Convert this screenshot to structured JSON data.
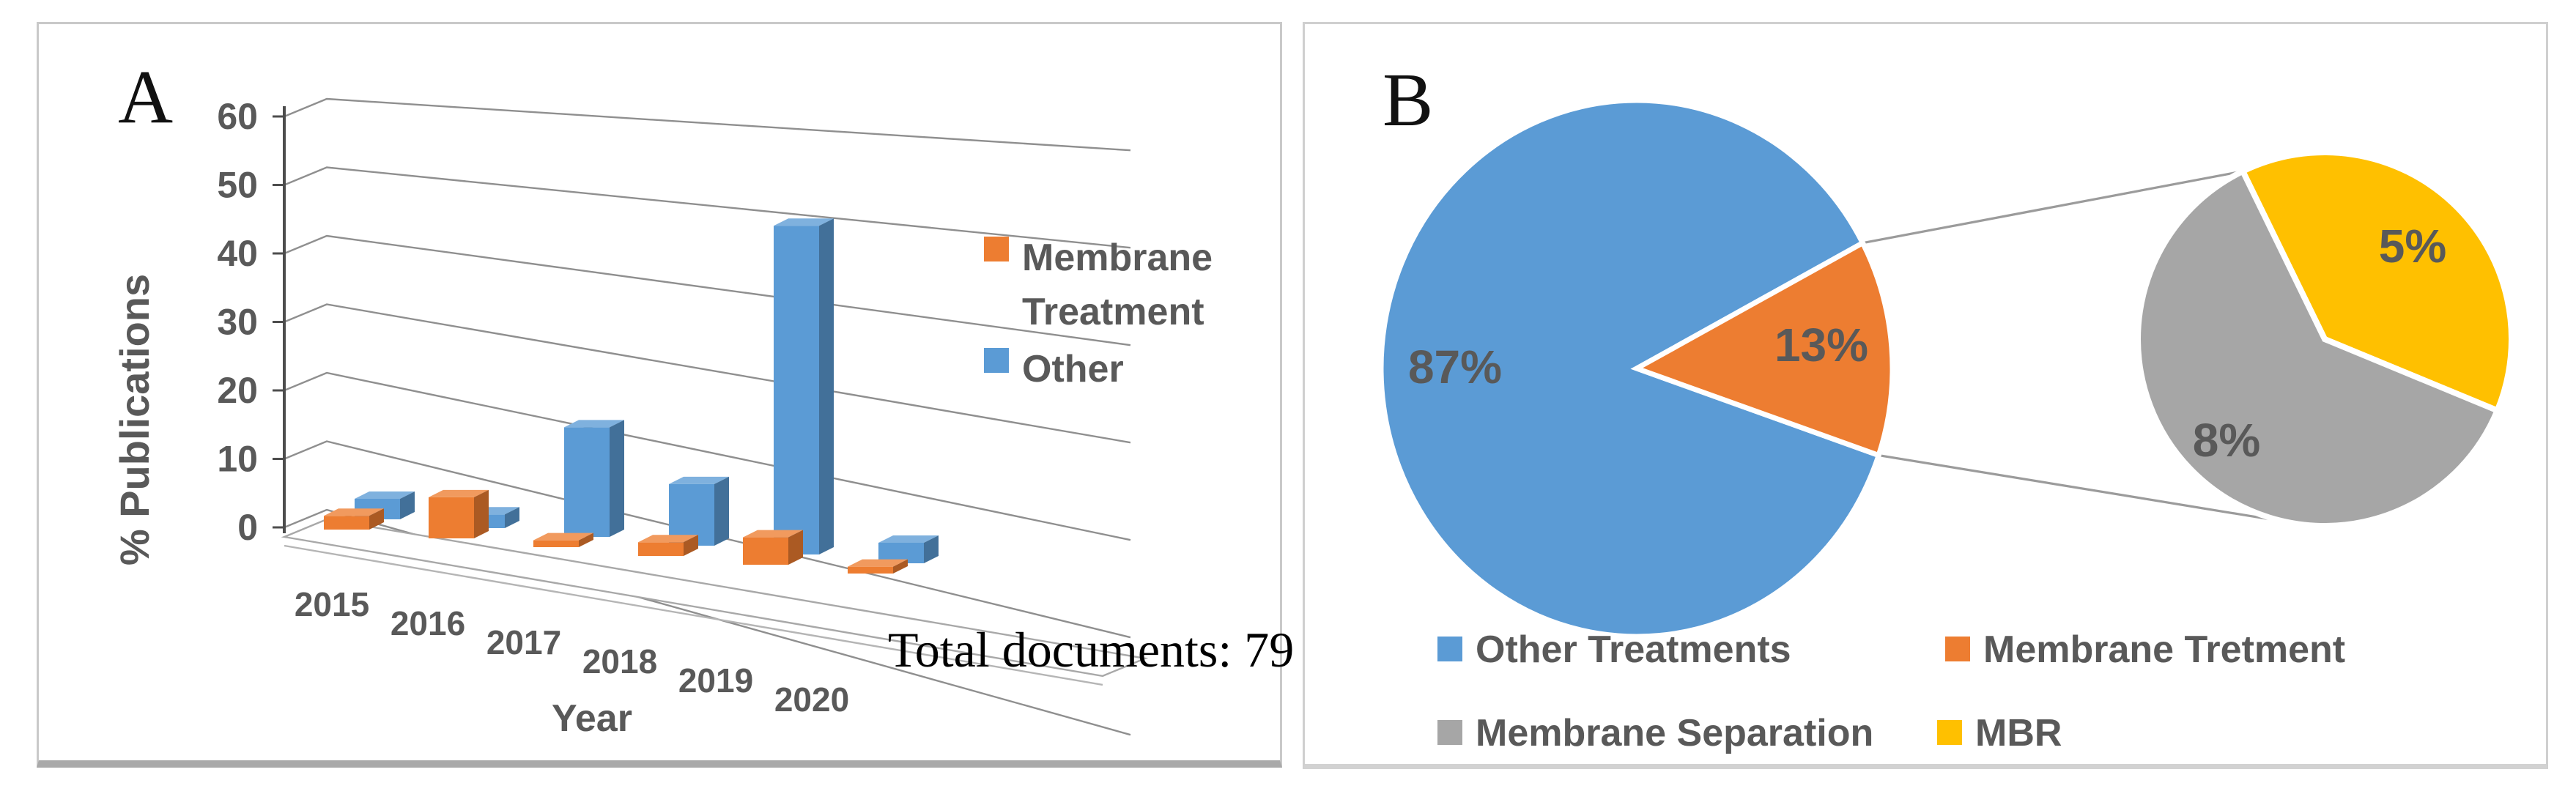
{
  "figure": {
    "panel_a_letter": "A",
    "panel_b_letter": "B",
    "note": "Total documents: 79"
  },
  "colors": {
    "blue": "#5B9BD5",
    "orange": "#ED7D31",
    "gray": "#A6A6A6",
    "yellow": "#FFC000",
    "label_gray": "#595959",
    "gridline": "#8f8f8f",
    "axis": "#4d4d4d",
    "connector": "#9b9b9b"
  },
  "chart_data": [
    {
      "type": "bar",
      "variant": "3d-column",
      "title": "",
      "xlabel": "Year",
      "ylabel": "% Publications",
      "categories": [
        "2015",
        "2016",
        "2017",
        "2018",
        "2019",
        "2020"
      ],
      "series": [
        {
          "name": "Membrane Treatment",
          "color": "#ED7D31",
          "values": [
            2,
            6,
            1,
            2,
            4,
            1
          ]
        },
        {
          "name": "Other",
          "color": "#5B9BD5",
          "values": [
            3,
            2,
            16,
            9,
            48,
            3
          ]
        }
      ],
      "ylim": [
        0,
        60
      ],
      "yticks": [
        0,
        10,
        20,
        30,
        40,
        50,
        60
      ],
      "grid": true,
      "legend_position": "right"
    },
    {
      "type": "pie",
      "variant": "pie-of-pie",
      "main": [
        {
          "label": "Other Treatments",
          "value": 87,
          "color": "#5B9BD5",
          "data_label": "87%"
        },
        {
          "label": "Membrane Tretment",
          "value": 13,
          "color": "#ED7D31",
          "data_label": "13%"
        }
      ],
      "secondary": [
        {
          "label": "MBR",
          "value": 5,
          "color": "#FFC000",
          "data_label": "5%"
        },
        {
          "label": "Membrane Separation",
          "value": 8,
          "color": "#A6A6A6",
          "data_label": "8%"
        }
      ],
      "legend": [
        {
          "label": "Other Treatments",
          "color": "#5B9BD5"
        },
        {
          "label": "Membrane Tretment",
          "color": "#ED7D31"
        },
        {
          "label": "Membrane Separation",
          "color": "#A6A6A6"
        },
        {
          "label": "MBR",
          "color": "#FFC000"
        }
      ],
      "legend_position": "bottom"
    }
  ],
  "legend_a": [
    {
      "label": "Membrane Treatment",
      "color": "#ED7D31"
    },
    {
      "label": "Other",
      "color": "#5B9BD5"
    }
  ]
}
